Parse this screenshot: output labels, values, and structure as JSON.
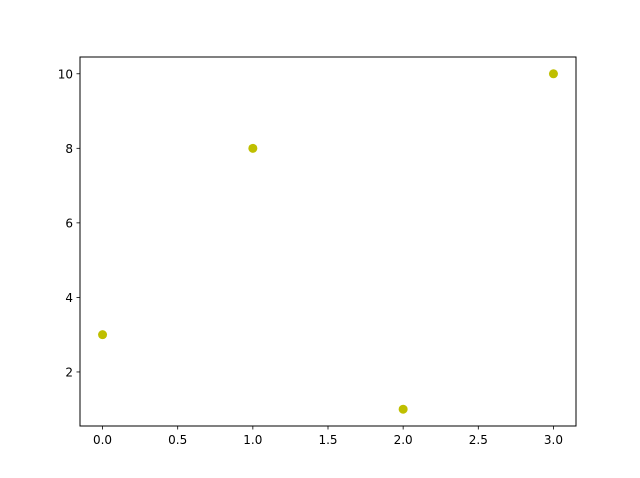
{
  "chart_data": {
    "type": "scatter",
    "title": "",
    "xlabel": "",
    "ylabel": "",
    "x": [
      0,
      1,
      2,
      3
    ],
    "y": [
      3,
      8,
      1,
      10
    ],
    "marker_color": "#bfbf00",
    "xlim": [
      -0.15,
      3.15
    ],
    "ylim": [
      0.55,
      10.45
    ],
    "xticks": [
      "0.0",
      "0.5",
      "1.0",
      "1.5",
      "2.0",
      "2.5",
      "3.0"
    ],
    "yticks": [
      "2",
      "4",
      "6",
      "8",
      "10"
    ],
    "grid": false,
    "legend": "none"
  }
}
